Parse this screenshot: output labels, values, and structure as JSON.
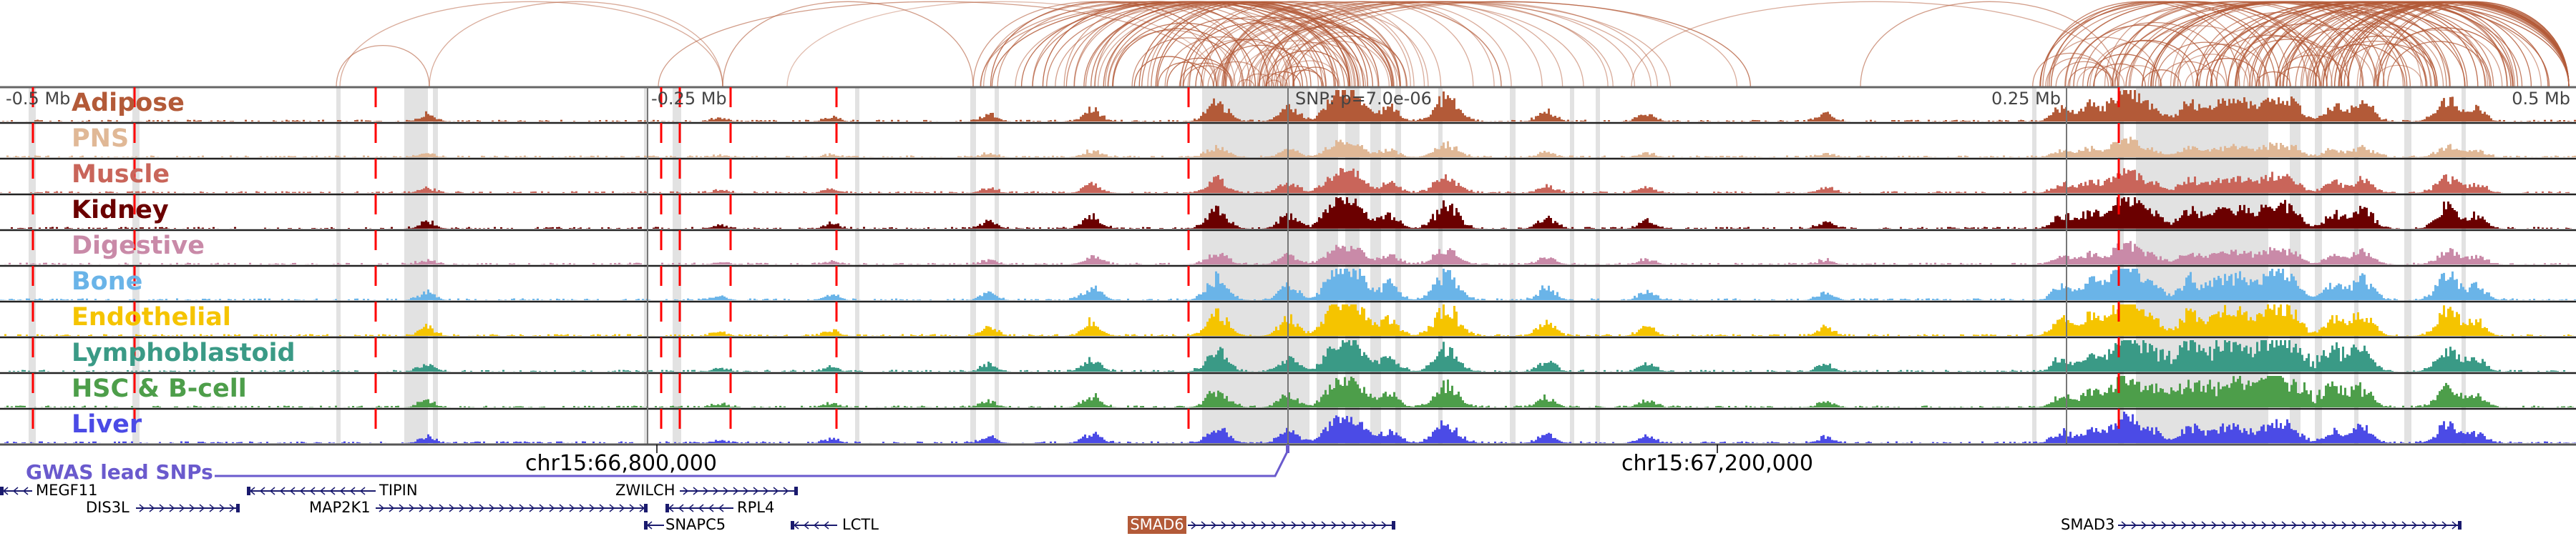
{
  "tracks": [
    {
      "label": "Adipose",
      "color": "#b35a38"
    },
    {
      "label": "PNS",
      "color": "#e0b896"
    },
    {
      "label": "Muscle",
      "color": "#c9655a"
    },
    {
      "label": "Kidney",
      "color": "#6b0000"
    },
    {
      "label": "Digestive",
      "color": "#c98aa8"
    },
    {
      "label": "Bone",
      "color": "#6ab4e8"
    },
    {
      "label": "Endothelial",
      "color": "#f5c400"
    },
    {
      "label": "Lymphoblastoid",
      "color": "#3a9a86"
    },
    {
      "label": "HSC & B-cell",
      "color": "#4d9e4a"
    },
    {
      "label": "Liver",
      "color": "#4b4be6"
    }
  ],
  "ticks": {
    "minus_half": "-0.5 Mb",
    "minus_quarter": "-0.25 Mb",
    "snp": "SNP: p=7.0e-06",
    "plus_quarter": "0.25 Mb",
    "plus_half": "0.5 Mb"
  },
  "coords": {
    "left": "chr15:66,800,000",
    "right": "chr15:67,200,000"
  },
  "gwas_label": "GWAS lead SNPs",
  "genes": {
    "megf11": "MEGF11",
    "dis3l": "DIS3L",
    "tipin": "TIPIN",
    "map2k1": "MAP2K1",
    "zwilch": "ZWILCH",
    "rpl4": "RPL4",
    "snapc5": "SNAPC5",
    "lctl": "LCTL",
    "smad6": "SMAD6",
    "smad3": "SMAD3"
  },
  "colors": {
    "arc": "#b35a38",
    "highlight_gene": "#b35a38",
    "gwas": "#6a5acd",
    "gene_line": "#1a1a6e",
    "snp_line": "#ff0000"
  }
}
